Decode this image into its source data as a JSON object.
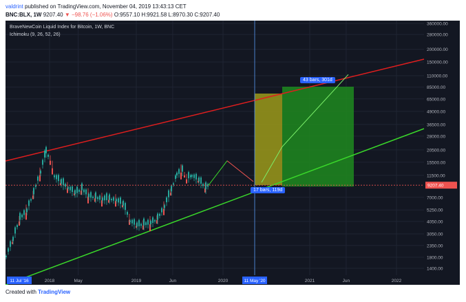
{
  "header": {
    "line1_author": "valdrint",
    "line1_text": "published on TradingView.com, November 04, 2019 13:43:13 CET",
    "symbol": "BNC:BLX, 1W",
    "price": "9207.40",
    "change": "▼ −98.76 (−1.06%)",
    "ohlc": "O:9557.10 H:9921.58 L:8970.30 C:9207.40"
  },
  "legend": {
    "title": "BraveNewCoin Liquid Index for Bitcoin, 1W, BNC",
    "indicator": "Ichimoku (9, 26, 52, 26)"
  },
  "yaxis": {
    "ticks": [
      {
        "label": "360000.00",
        "v": 360000
      },
      {
        "label": "280000.00",
        "v": 280000
      },
      {
        "label": "200000.00",
        "v": 200000
      },
      {
        "label": "150000.00",
        "v": 150000
      },
      {
        "label": "110000.00",
        "v": 110000
      },
      {
        "label": "85000.00",
        "v": 85000
      },
      {
        "label": "65000.00",
        "v": 65000
      },
      {
        "label": "49000.00",
        "v": 49000
      },
      {
        "label": "36500.00",
        "v": 36500
      },
      {
        "label": "28000.00",
        "v": 28000
      },
      {
        "label": "20500.00",
        "v": 20500
      },
      {
        "label": "15500.00",
        "v": 15500
      },
      {
        "label": "11500.00",
        "v": 11500
      },
      {
        "label": "7000.00",
        "v": 7000
      },
      {
        "label": "5250.00",
        "v": 5250
      },
      {
        "label": "4050.00",
        "v": 4050
      },
      {
        "label": "3050.00",
        "v": 3050
      },
      {
        "label": "2350.00",
        "v": 2350
      },
      {
        "label": "1800.00",
        "v": 1800
      },
      {
        "label": "1400.00",
        "v": 1400
      }
    ],
    "current_price_label": "9207.40",
    "current_price": 9207.4
  },
  "xaxis": {
    "ticks": [
      {
        "label": "2018",
        "t": 2018.0
      },
      {
        "label": "May",
        "t": 2018.33
      },
      {
        "label": "2019",
        "t": 2019.0
      },
      {
        "label": "Jun",
        "t": 2019.42
      },
      {
        "label": "2020",
        "t": 2020.0
      },
      {
        "label": "2021",
        "t": 2021.0
      },
      {
        "label": "Jun",
        "t": 2021.42
      },
      {
        "label": "2022",
        "t": 2022.0
      }
    ],
    "start_label": "11 Jul '16",
    "cursor_label": "11 May '20"
  },
  "annotations": {
    "forecast_long": "43 bars, 301d",
    "forecast_short": "17 bars, 119d"
  },
  "colors": {
    "background": "#131722",
    "up": "#26a69a",
    "down": "#ef5350",
    "resistance": "#e01e1e",
    "support": "#3ad82a",
    "projection_yellow": "#9c9a1a",
    "projection_green": "#1f8a1f"
  },
  "footer": {
    "created_with": "Created with",
    "brand": "TradingView"
  }
}
